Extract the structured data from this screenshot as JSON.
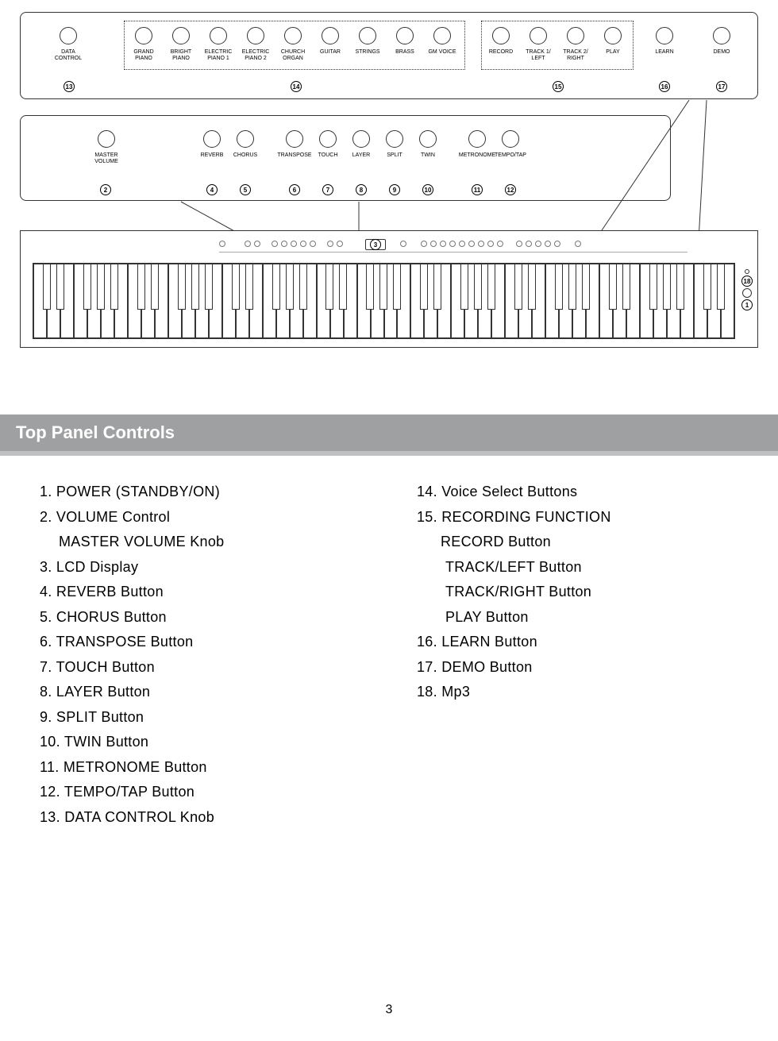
{
  "panel1": {
    "data_control": {
      "label": "DATA CONTROL",
      "num": "13"
    },
    "voice_group": {
      "items": [
        {
          "label": "GRAND\nPIANO"
        },
        {
          "label": "BRIGHT\nPIANO"
        },
        {
          "label": "ELECTRIC\nPIANO 1"
        },
        {
          "label": "ELECTRIC\nPIANO 2"
        },
        {
          "label": "CHURCH\nORGAN"
        },
        {
          "label": "GUITAR"
        },
        {
          "label": "STRINGS"
        },
        {
          "label": "BRASS"
        },
        {
          "label": "GM VOICE"
        }
      ],
      "num": "14"
    },
    "record_group": {
      "items": [
        {
          "label": "RECORD"
        },
        {
          "label": "TRACK 1/\nLEFT"
        },
        {
          "label": "TRACK 2/\nRIGHT"
        },
        {
          "label": "PLAY"
        }
      ],
      "num": "15"
    },
    "learn": {
      "label": "LEARN",
      "num": "16"
    },
    "demo": {
      "label": "DEMO",
      "num": "17"
    }
  },
  "panel2": {
    "master": {
      "label": "MASTER VOLUME",
      "num": "2"
    },
    "items": [
      {
        "label": "REVERB",
        "num": "4"
      },
      {
        "label": "CHORUS",
        "num": "5"
      },
      {
        "label": "TRANSPOSE",
        "num": "6"
      },
      {
        "label": "TOUCH",
        "num": "7"
      },
      {
        "label": "LAYER",
        "num": "8"
      },
      {
        "label": "SPLIT",
        "num": "9"
      },
      {
        "label": "TWIN",
        "num": "10"
      },
      {
        "label": "METRONOME",
        "num": "11"
      },
      {
        "label": "TEMPO/TAP",
        "num": "12"
      }
    ]
  },
  "panel3": {
    "lcd_num": "3",
    "keys_white_per_octave": 7,
    "octaves": 7,
    "extra_white": 3,
    "num18": "18",
    "num1": "1"
  },
  "section_title": "Top  Panel Controls",
  "left_col": [
    "1. POWER (STANDBY/ON)",
    "2. VOLUME Control",
    "    MASTER VOLUME Knob",
    "3. LCD Display",
    "4. REVERB Button",
    "5. CHORUS Button",
    "6. TRANSPOSE Button",
    "7. TOUCH Button",
    "8. LAYER Button",
    "9. SPLIT Button",
    "10. TWIN Button",
    "11. METRONOME Button",
    "12. TEMPO/TAP Button",
    "13. DATA CONTROL Knob"
  ],
  "right_col": [
    "14. Voice Select Buttons",
    "15. RECORDING  FUNCTION",
    "     RECORD Button",
    "      TRACK/LEFT Button",
    "      TRACK/RIGHT Button",
    "      PLAY Button",
    "16. LEARN Button",
    "17. DEMO Button",
    "18. Mp3"
  ],
  "page_number": "3",
  "colors": {
    "header_bg": "#9fa0a1",
    "header_sub": "#bfc0c1",
    "text": "#000000",
    "line": "#333333"
  }
}
